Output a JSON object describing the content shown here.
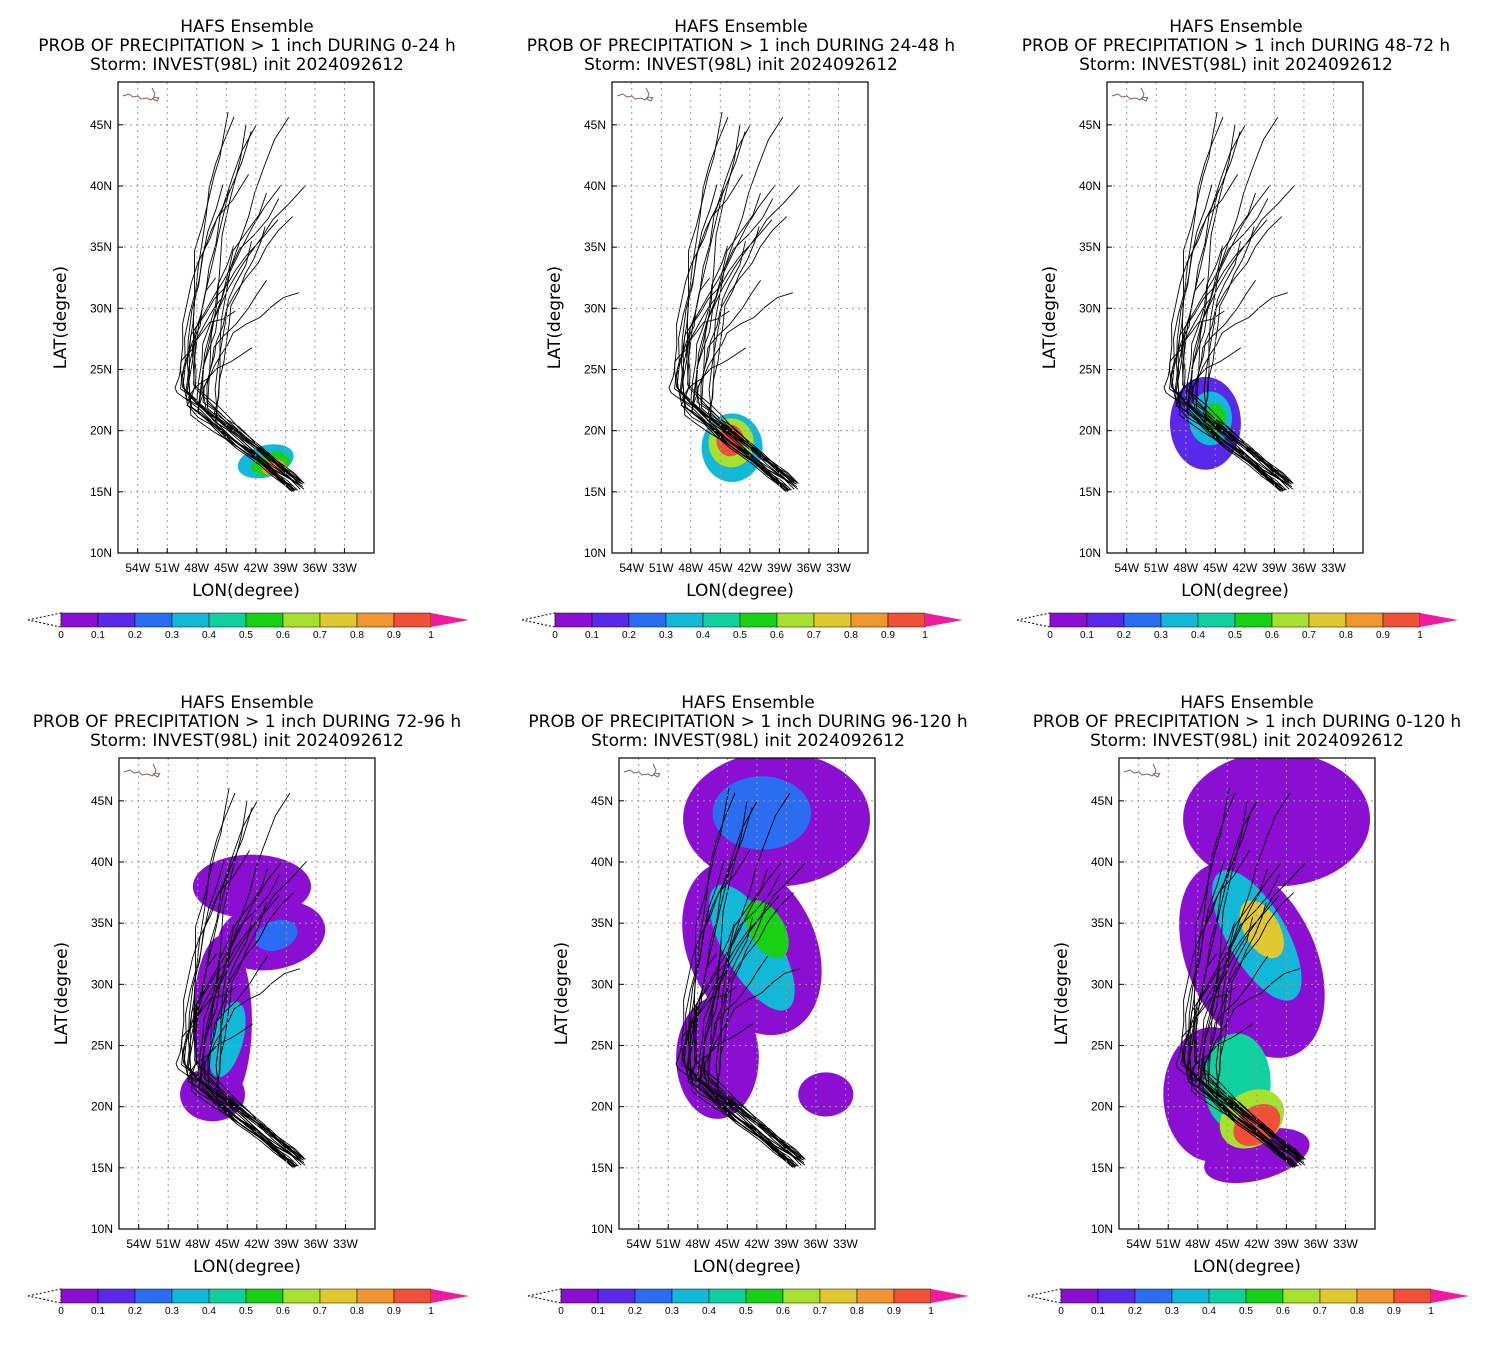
{
  "colorbar": {
    "labels": [
      "0",
      "0.1",
      "0.2",
      "0.3",
      "0.4",
      "0.5",
      "0.6",
      "0.7",
      "0.8",
      "0.9",
      "1"
    ],
    "colors": [
      "#8a0fd2",
      "#5a28e8",
      "#2a6cf2",
      "#12b8d8",
      "#10d0a0",
      "#18d014",
      "#a8e030",
      "#e0c830",
      "#f09630",
      "#f05038"
    ],
    "over_color": "#f01ca0"
  },
  "chart_data": [
    {
      "type": "heatmap",
      "title_lines": [
        "HAFS Ensemble",
        "PROB OF PRECIPITATION > 1 inch DURING  0-24 h",
        "Storm: INVEST(98L) init 2024092612"
      ],
      "xlabel": "LON(degree)",
      "ylabel": "LAT(degree)",
      "x_ticks": [
        "54W",
        "51W",
        "48W",
        "45W",
        "42W",
        "39W",
        "36W",
        "33W"
      ],
      "y_ticks": [
        "10N",
        "15N",
        "20N",
        "25N",
        "30N",
        "35N",
        "40N",
        "45N"
      ],
      "xlim": [
        -56,
        -30
      ],
      "ylim": [
        10,
        48.5
      ],
      "grid": true,
      "prob_field": [
        {
          "lon": -41.0,
          "lat": 17.5,
          "rx": 2.9,
          "ry": 1.3,
          "rot": -15,
          "p": 0.35
        },
        {
          "lon": -40.5,
          "lat": 17.3,
          "rx": 2.0,
          "ry": 0.9,
          "rot": -15,
          "p": 0.55
        },
        {
          "lon": -40.2,
          "lat": 17.0,
          "rx": 1.2,
          "ry": 0.6,
          "rot": -15,
          "p": 0.8
        }
      ]
    },
    {
      "type": "heatmap",
      "title_lines": [
        "HAFS Ensemble",
        "PROB OF PRECIPITATION > 1 inch DURING 24-48 h",
        "Storm: INVEST(98L) init 2024092612"
      ],
      "xlabel": "LON(degree)",
      "ylabel": "LAT(degree)",
      "x_ticks": [
        "54W",
        "51W",
        "48W",
        "45W",
        "42W",
        "39W",
        "36W",
        "33W"
      ],
      "y_ticks": [
        "10N",
        "15N",
        "20N",
        "25N",
        "30N",
        "35N",
        "40N",
        "45N"
      ],
      "xlim": [
        -56,
        -30
      ],
      "ylim": [
        10,
        48.5
      ],
      "grid": true,
      "prob_field": [
        {
          "lon": -43.8,
          "lat": 18.6,
          "rx": 3.1,
          "ry": 2.8,
          "rot": 0,
          "p": 0.35
        },
        {
          "lon": -43.9,
          "lat": 19.0,
          "rx": 2.3,
          "ry": 2.0,
          "rot": 0,
          "p": 0.6
        },
        {
          "lon": -44.0,
          "lat": 19.2,
          "rx": 1.4,
          "ry": 1.3,
          "rot": 0,
          "p": 0.9
        }
      ]
    },
    {
      "type": "heatmap",
      "title_lines": [
        "HAFS Ensemble",
        "PROB OF PRECIPITATION > 1 inch DURING 48-72 h",
        "Storm: INVEST(98L) init 2024092612"
      ],
      "xlabel": "LON(degree)",
      "ylabel": "LAT(degree)",
      "x_ticks": [
        "54W",
        "51W",
        "48W",
        "45W",
        "42W",
        "39W",
        "36W",
        "33W"
      ],
      "y_ticks": [
        "10N",
        "15N",
        "20N",
        "25N",
        "30N",
        "35N",
        "40N",
        "45N"
      ],
      "xlim": [
        -56,
        -30
      ],
      "ylim": [
        10,
        48.5
      ],
      "grid": true,
      "prob_field": [
        {
          "lon": -46.0,
          "lat": 20.6,
          "rx": 3.6,
          "ry": 3.8,
          "rot": 0,
          "p": 0.15
        },
        {
          "lon": -45.5,
          "lat": 21.0,
          "rx": 2.2,
          "ry": 2.2,
          "rot": 0,
          "p": 0.35
        },
        {
          "lon": -45.0,
          "lat": 21.0,
          "rx": 1.1,
          "ry": 1.2,
          "rot": 0,
          "p": 0.55
        }
      ]
    },
    {
      "type": "heatmap",
      "title_lines": [
        "HAFS Ensemble",
        "PROB OF PRECIPITATION > 1 inch DURING 72-96 h",
        "Storm: INVEST(98L) init 2024092612"
      ],
      "xlabel": "LON(degree)",
      "ylabel": "LAT(degree)",
      "x_ticks": [
        "54W",
        "51W",
        "48W",
        "45W",
        "42W",
        "39W",
        "36W",
        "33W"
      ],
      "y_ticks": [
        "10N",
        "15N",
        "20N",
        "25N",
        "30N",
        "35N",
        "40N",
        "45N"
      ],
      "xlim": [
        -56,
        -30
      ],
      "ylim": [
        10,
        48.5
      ],
      "grid": true,
      "prob_field": [
        {
          "lon": -42.5,
          "lat": 38.0,
          "rx": 6.0,
          "ry": 2.6,
          "rot": 0,
          "p": 0.05
        },
        {
          "lon": -40.5,
          "lat": 34.0,
          "rx": 5.5,
          "ry": 2.8,
          "rot": -10,
          "p": 0.05
        },
        {
          "lon": -45.5,
          "lat": 27.0,
          "rx": 3.0,
          "ry": 7.0,
          "rot": 0,
          "p": 0.05
        },
        {
          "lon": -46.5,
          "lat": 21.0,
          "rx": 3.3,
          "ry": 2.2,
          "rot": 0,
          "p": 0.05
        },
        {
          "lon": -45.0,
          "lat": 25.5,
          "rx": 1.6,
          "ry": 3.2,
          "rot": 15,
          "p": 0.3
        },
        {
          "lon": -40.0,
          "lat": 34.0,
          "rx": 2.2,
          "ry": 1.2,
          "rot": -20,
          "p": 0.2
        }
      ]
    },
    {
      "type": "heatmap",
      "title_lines": [
        "HAFS Ensemble",
        "PROB OF PRECIPITATION > 1 inch DURING 96-120 h",
        "Storm: INVEST(98L) init 2024092612"
      ],
      "xlabel": "LON(degree)",
      "ylabel": "LAT(degree)",
      "x_ticks": [
        "54W",
        "51W",
        "48W",
        "45W",
        "42W",
        "39W",
        "36W",
        "33W"
      ],
      "y_ticks": [
        "10N",
        "15N",
        "20N",
        "25N",
        "30N",
        "35N",
        "40N",
        "45N"
      ],
      "xlim": [
        -56,
        -30
      ],
      "ylim": [
        10,
        48.5
      ],
      "grid": true,
      "prob_field": [
        {
          "lon": -40.0,
          "lat": 43.5,
          "rx": 9.5,
          "ry": 5.5,
          "rot": 0,
          "p": 0.05
        },
        {
          "lon": -42.5,
          "lat": 33.0,
          "rx": 6.5,
          "ry": 7.5,
          "rot": -25,
          "p": 0.05
        },
        {
          "lon": -46.0,
          "lat": 24.0,
          "rx": 4.2,
          "ry": 5.0,
          "rot": 0,
          "p": 0.05
        },
        {
          "lon": -35.0,
          "lat": 21.0,
          "rx": 2.8,
          "ry": 1.8,
          "rot": 0,
          "p": 0.05
        },
        {
          "lon": -41.5,
          "lat": 44.0,
          "rx": 5.0,
          "ry": 3.0,
          "rot": 0,
          "p": 0.25
        },
        {
          "lon": -42.5,
          "lat": 33.0,
          "rx": 2.8,
          "ry": 5.8,
          "rot": -30,
          "p": 0.3
        },
        {
          "lon": -41.0,
          "lat": 34.5,
          "rx": 1.8,
          "ry": 2.6,
          "rot": -30,
          "p": 0.55
        }
      ]
    },
    {
      "type": "heatmap",
      "title_lines": [
        "HAFS Ensemble",
        "PROB OF PRECIPITATION > 1 inch DURING 0-120 h",
        "Storm: INVEST(98L) init 2024092612"
      ],
      "xlabel": "LON(degree)",
      "ylabel": "LAT(degree)",
      "x_ticks": [
        "54W",
        "51W",
        "48W",
        "45W",
        "42W",
        "39W",
        "36W",
        "33W"
      ],
      "y_ticks": [
        "10N",
        "15N",
        "20N",
        "25N",
        "30N",
        "35N",
        "40N",
        "45N"
      ],
      "xlim": [
        -56,
        -30
      ],
      "ylim": [
        10,
        48.5
      ],
      "grid": true,
      "prob_field": [
        {
          "lon": -40.0,
          "lat": 43.5,
          "rx": 9.5,
          "ry": 5.5,
          "rot": 0,
          "p": 0.05
        },
        {
          "lon": -42.5,
          "lat": 32.0,
          "rx": 6.5,
          "ry": 8.5,
          "rot": -25,
          "p": 0.05
        },
        {
          "lon": -46.5,
          "lat": 21.0,
          "rx": 5.0,
          "ry": 5.5,
          "rot": 0,
          "p": 0.05
        },
        {
          "lon": -42.0,
          "lat": 16.0,
          "rx": 5.5,
          "ry": 2.0,
          "rot": -15,
          "p": 0.05
        },
        {
          "lon": -42.0,
          "lat": 34.0,
          "rx": 3.0,
          "ry": 6.0,
          "rot": -30,
          "p": 0.3
        },
        {
          "lon": -44.0,
          "lat": 22.0,
          "rx": 3.4,
          "ry": 4.0,
          "rot": 0,
          "p": 0.4
        },
        {
          "lon": -41.5,
          "lat": 34.5,
          "rx": 1.8,
          "ry": 2.6,
          "rot": -30,
          "p": 0.7
        },
        {
          "lon": -42.5,
          "lat": 19.0,
          "rx": 3.5,
          "ry": 2.2,
          "rot": -35,
          "p": 0.6
        },
        {
          "lon": -42.0,
          "lat": 18.5,
          "rx": 2.6,
          "ry": 1.5,
          "rot": -35,
          "p": 0.9
        }
      ]
    }
  ]
}
